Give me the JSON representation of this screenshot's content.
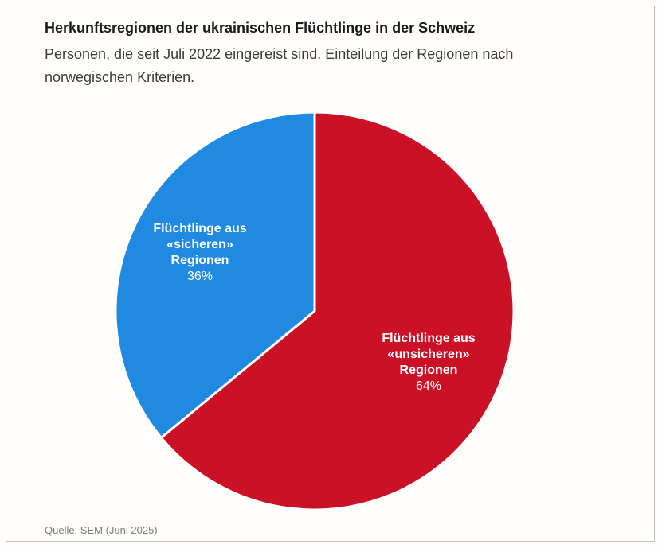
{
  "card": {
    "title": "Herkunftsregionen der ukrainischen Flüchtlinge in der Schweiz",
    "subtitle": "Personen, die seit Juli 2022 eingereist sind. Einteilung der Regionen nach\nnorwegischen Kriterien.",
    "source": "Quelle: SEM (Juni 2025)"
  },
  "colors": {
    "unsafe_red": "#cb1126",
    "safe_blue": "#2089e2",
    "divider_white": "#ffffff",
    "border_gray": "#c0c0c0",
    "background": "#fffefa",
    "title_text": "#1a1a1a",
    "subtitle_text": "#3c3c3c",
    "source_text": "#7a7a7a"
  },
  "chart_data": {
    "type": "pie",
    "title": "Herkunftsregionen der ukrainischen Flüchtlinge in der Schweiz",
    "subtitle": "Personen, die seit Juli 2022 eingereist sind. Einteilung der Regionen nach norwegischen Kriterien.",
    "source": "Quelle: SEM (Juni 2025)",
    "start_angle_deg": 0,
    "direction": "clockwise",
    "divider_color": "#ffffff",
    "legend_position": "labels-inside-slices",
    "slices": [
      {
        "name": "unsichere-regionen",
        "label": "Flüchtlinge aus\n«unsicheren»\nRegionen",
        "percent_label": "64%",
        "value": 64,
        "color": "#cb1126"
      },
      {
        "name": "sichere-regionen",
        "label": "Flüchtlinge aus\n«sicheren»\nRegionen",
        "percent_label": "36%",
        "value": 36,
        "color": "#2089e2"
      }
    ]
  }
}
